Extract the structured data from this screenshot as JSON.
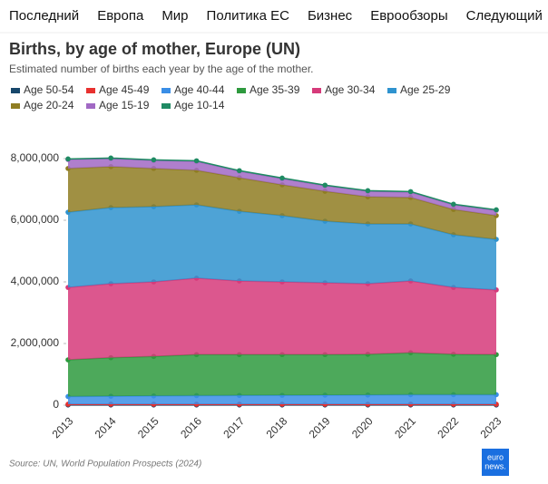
{
  "nav": [
    "Последний",
    "Европа",
    "Мир",
    "Политика ЕС",
    "Бизнес",
    "Еврообзоры",
    "Следующий"
  ],
  "source": "Source: UN, World Population Prospects (2024)",
  "logo": [
    "euro",
    "news."
  ],
  "chart_data": {
    "type": "stacked-area",
    "title": "Births, by age of mother, Europe (UN)",
    "subtitle": "Estimated number of births each year by the age of the mother.",
    "categories": [
      "2013",
      "2014",
      "2015",
      "2016",
      "2017",
      "2018",
      "2019",
      "2020",
      "2021",
      "2022",
      "2023"
    ],
    "series": [
      {
        "name": "Age 50-54",
        "color": "#17476b",
        "values": [
          5000,
          5000,
          5000,
          5000,
          5000,
          5000,
          5000,
          5000,
          5000,
          5000,
          5000
        ]
      },
      {
        "name": "Age 45-49",
        "color": "#e8312f",
        "values": [
          25000,
          25000,
          25000,
          25000,
          25000,
          25000,
          25000,
          25000,
          25000,
          25000,
          25000
        ]
      },
      {
        "name": "Age 40-44",
        "color": "#3a8ee6",
        "values": [
          250000,
          260000,
          270000,
          280000,
          285000,
          290000,
          295000,
          300000,
          310000,
          310000,
          310000
        ]
      },
      {
        "name": "Age 35-39",
        "color": "#2e9a3e",
        "values": [
          1190000,
          1250000,
          1280000,
          1330000,
          1325000,
          1320000,
          1315000,
          1320000,
          1360000,
          1310000,
          1300000
        ]
      },
      {
        "name": "Age 30-34",
        "color": "#d63a7a",
        "values": [
          2350000,
          2400000,
          2420000,
          2480000,
          2390000,
          2360000,
          2330000,
          2290000,
          2330000,
          2170000,
          2100000
        ]
      },
      {
        "name": "Age 25-29",
        "color": "#2f93cf",
        "values": [
          2440000,
          2470000,
          2440000,
          2380000,
          2260000,
          2150000,
          2000000,
          1940000,
          1850000,
          1710000,
          1640000
        ]
      },
      {
        "name": "Age 20-24",
        "color": "#8f7d22",
        "values": [
          1420000,
          1330000,
          1240000,
          1120000,
          1090000,
          1000000,
          970000,
          880000,
          860000,
          820000,
          770000
        ]
      },
      {
        "name": "Age 15-19",
        "color": "#a169c4",
        "values": [
          290000,
          260000,
          260000,
          290000,
          210000,
          200000,
          180000,
          180000,
          170000,
          150000,
          170000
        ]
      },
      {
        "name": "Age 10-14",
        "color": "#1f8a63",
        "values": [
          20000,
          20000,
          20000,
          20000,
          20000,
          20000,
          20000,
          20000,
          20000,
          20000,
          20000
        ]
      }
    ],
    "ylim": [
      0,
      9000000
    ],
    "yticks": [
      0,
      {
        "value": 2000000,
        "label": "2,000,000"
      },
      {
        "value": 4000000,
        "label": "4,000,000"
      },
      {
        "value": 6000000,
        "label": "6,000,000"
      },
      {
        "value": 8000000,
        "label": "8,000,000"
      }
    ]
  }
}
